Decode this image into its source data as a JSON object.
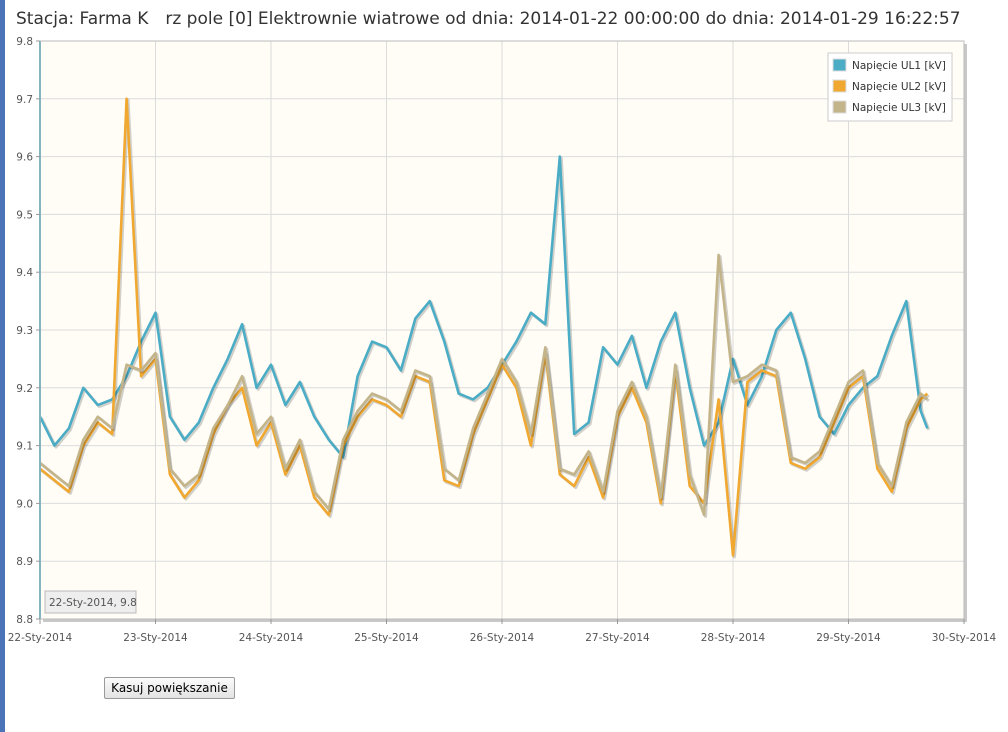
{
  "page": {
    "title": "Stacja: Farma K  rz pole [0] Elektrownie wiatrowe od dnia: 2014-01-22 00:00:00 do dnia: 2014-01-29 16:22:57"
  },
  "cursor_readout": "22-Sty-2014, 9.8",
  "reset_zoom_label": "Kasuj powiększanie",
  "chart_data": {
    "type": "line",
    "title": "",
    "xlabel": "",
    "ylabel": "",
    "x_ticks": [
      "22-Sty-2014",
      "23-Sty-2014",
      "24-Sty-2014",
      "25-Sty-2014",
      "26-Sty-2014",
      "27-Sty-2014",
      "28-Sty-2014",
      "29-Sty-2014",
      "30-Sty-2014"
    ],
    "y_ticks": [
      "8.8",
      "8.9",
      "9.0",
      "9.1",
      "9.2",
      "9.3",
      "9.4",
      "9.5",
      "9.6",
      "9.7",
      "9.8"
    ],
    "xlim": [
      "2014-01-22 00:00",
      "2014-01-30 00:00"
    ],
    "ylim": [
      8.8,
      9.8
    ],
    "grid": true,
    "legend_position": "top-right",
    "x": [
      "2014-01-22 00:00",
      "2014-01-22 03:00",
      "2014-01-22 06:00",
      "2014-01-22 09:00",
      "2014-01-22 12:00",
      "2014-01-22 15:00",
      "2014-01-22 18:00",
      "2014-01-22 21:00",
      "2014-01-23 00:00",
      "2014-01-23 03:00",
      "2014-01-23 06:00",
      "2014-01-23 09:00",
      "2014-01-23 12:00",
      "2014-01-23 15:00",
      "2014-01-23 18:00",
      "2014-01-23 21:00",
      "2014-01-24 00:00",
      "2014-01-24 03:00",
      "2014-01-24 06:00",
      "2014-01-24 09:00",
      "2014-01-24 12:00",
      "2014-01-24 15:00",
      "2014-01-24 18:00",
      "2014-01-24 21:00",
      "2014-01-25 00:00",
      "2014-01-25 03:00",
      "2014-01-25 06:00",
      "2014-01-25 09:00",
      "2014-01-25 12:00",
      "2014-01-25 15:00",
      "2014-01-25 18:00",
      "2014-01-25 21:00",
      "2014-01-26 00:00",
      "2014-01-26 03:00",
      "2014-01-26 06:00",
      "2014-01-26 09:00",
      "2014-01-26 12:00",
      "2014-01-26 15:00",
      "2014-01-26 18:00",
      "2014-01-26 21:00",
      "2014-01-27 00:00",
      "2014-01-27 03:00",
      "2014-01-27 06:00",
      "2014-01-27 09:00",
      "2014-01-27 12:00",
      "2014-01-27 15:00",
      "2014-01-27 18:00",
      "2014-01-27 21:00",
      "2014-01-28 00:00",
      "2014-01-28 03:00",
      "2014-01-28 06:00",
      "2014-01-28 09:00",
      "2014-01-28 12:00",
      "2014-01-28 15:00",
      "2014-01-28 18:00",
      "2014-01-28 21:00",
      "2014-01-29 00:00",
      "2014-01-29 03:00",
      "2014-01-29 06:00",
      "2014-01-29 09:00",
      "2014-01-29 12:00",
      "2014-01-29 15:00",
      "2014-01-29 16:22"
    ],
    "series": [
      {
        "name": "Napięcie UL1 [kV]",
        "color": "#4bacc6",
        "values": [
          9.15,
          9.1,
          9.13,
          9.2,
          9.17,
          9.18,
          9.22,
          9.28,
          9.33,
          9.15,
          9.11,
          9.14,
          9.2,
          9.25,
          9.31,
          9.2,
          9.24,
          9.17,
          9.21,
          9.15,
          9.11,
          9.08,
          9.22,
          9.28,
          9.27,
          9.23,
          9.32,
          9.35,
          9.28,
          9.19,
          9.18,
          9.2,
          9.24,
          9.28,
          9.33,
          9.31,
          9.6,
          9.12,
          9.14,
          9.27,
          9.24,
          9.29,
          9.2,
          9.28,
          9.33,
          9.2,
          9.1,
          9.14,
          9.25,
          9.17,
          9.22,
          9.3,
          9.33,
          9.25,
          9.15,
          9.12,
          9.17,
          9.2,
          9.22,
          9.29,
          9.35,
          9.16,
          9.13
        ]
      },
      {
        "name": "Napięcie UL2 [kV]",
        "color": "#f0a830",
        "values": [
          9.06,
          9.04,
          9.02,
          9.1,
          9.14,
          9.12,
          9.7,
          9.22,
          9.25,
          9.05,
          9.01,
          9.04,
          9.12,
          9.17,
          9.2,
          9.1,
          9.14,
          9.05,
          9.1,
          9.01,
          8.98,
          9.1,
          9.15,
          9.18,
          9.17,
          9.15,
          9.22,
          9.21,
          9.04,
          9.03,
          9.12,
          9.18,
          9.24,
          9.2,
          9.1,
          9.26,
          9.05,
          9.03,
          9.08,
          9.01,
          9.15,
          9.2,
          9.14,
          9.0,
          9.23,
          9.03,
          9.0,
          9.18,
          8.91,
          9.21,
          9.23,
          9.22,
          9.07,
          9.06,
          9.08,
          9.14,
          9.2,
          9.22,
          9.06,
          9.02,
          9.13,
          9.18,
          9.19
        ]
      },
      {
        "name": "Napięcie UL3 [kV]",
        "color": "#c3b48a",
        "values": [
          9.07,
          9.05,
          9.03,
          9.11,
          9.15,
          9.13,
          9.24,
          9.23,
          9.26,
          9.06,
          9.03,
          9.05,
          9.13,
          9.17,
          9.22,
          9.12,
          9.15,
          9.06,
          9.11,
          9.02,
          8.99,
          9.11,
          9.16,
          9.19,
          9.18,
          9.16,
          9.23,
          9.22,
          9.06,
          9.04,
          9.13,
          9.19,
          9.25,
          9.21,
          9.12,
          9.27,
          9.06,
          9.05,
          9.09,
          9.02,
          9.16,
          9.21,
          9.15,
          9.01,
          9.24,
          9.05,
          8.98,
          9.43,
          9.21,
          9.22,
          9.24,
          9.23,
          9.08,
          9.07,
          9.09,
          9.15,
          9.21,
          9.23,
          9.07,
          9.03,
          9.14,
          9.19,
          9.18
        ]
      }
    ]
  }
}
